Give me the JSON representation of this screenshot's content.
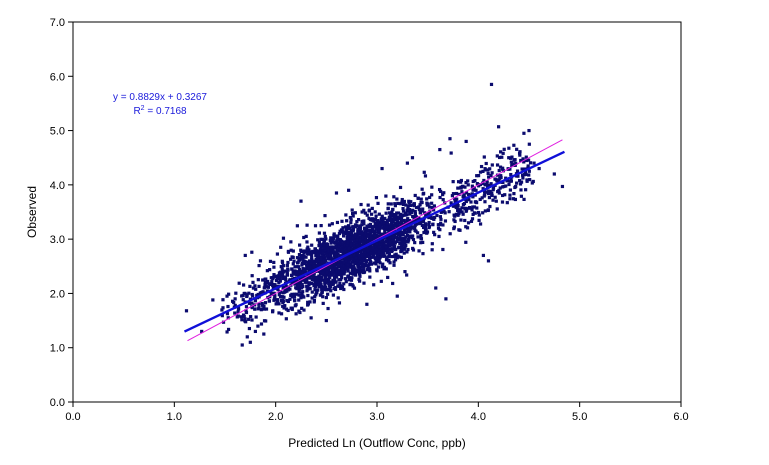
{
  "chart_data": {
    "type": "scatter",
    "title": "",
    "xlabel": "Predicted Ln (Outflow Conc, ppb)",
    "ylabel": "Observed",
    "xlim": [
      0,
      6
    ],
    "ylim": [
      0,
      7
    ],
    "x_ticks": [
      "0.0",
      "1.0",
      "2.0",
      "3.0",
      "4.0",
      "5.0",
      "6.0"
    ],
    "y_ticks": [
      "0.0",
      "1.0",
      "2.0",
      "3.0",
      "4.0",
      "5.0",
      "6.0",
      "7.0"
    ],
    "grid": false,
    "legend": "none",
    "annotation": {
      "equation": "y = 0.8829x + 0.3267",
      "r2_prefix": "R",
      "r2_sup": "2",
      "r2_value": " = 0.7168"
    },
    "series": [
      {
        "kind": "points",
        "color": "#0b0b6e",
        "approx_count": 2500,
        "x_range": [
          1.1,
          4.85
        ],
        "y_range": [
          1.05,
          5.85
        ],
        "points": [
          [
            1.12,
            1.68
          ],
          [
            1.27,
            1.3
          ],
          [
            1.38,
            1.88
          ],
          [
            1.52,
            1.95
          ],
          [
            1.6,
            1.9
          ],
          [
            1.67,
            1.05
          ],
          [
            1.7,
            2.7
          ],
          [
            1.72,
            1.2
          ],
          [
            1.75,
            1.1
          ],
          [
            1.8,
            1.3
          ],
          [
            1.85,
            2.6
          ],
          [
            2.05,
            2.85
          ],
          [
            2.15,
            2.95
          ],
          [
            2.25,
            3.7
          ],
          [
            2.35,
            1.55
          ],
          [
            2.5,
            1.5
          ],
          [
            2.6,
            3.85
          ],
          [
            2.72,
            3.9
          ],
          [
            2.9,
            1.8
          ],
          [
            3.05,
            4.3
          ],
          [
            3.2,
            1.95
          ],
          [
            3.3,
            4.4
          ],
          [
            3.35,
            4.5
          ],
          [
            3.58,
            2.1
          ],
          [
            3.62,
            4.65
          ],
          [
            3.68,
            1.9
          ],
          [
            3.72,
            4.85
          ],
          [
            3.88,
            4.8
          ],
          [
            4.05,
            2.7
          ],
          [
            4.1,
            2.6
          ],
          [
            4.13,
            5.85
          ],
          [
            4.2,
            5.07
          ],
          [
            4.3,
            4.5
          ],
          [
            4.45,
            4.95
          ],
          [
            4.5,
            5.0
          ],
          [
            4.55,
            4.4
          ],
          [
            4.6,
            4.3
          ],
          [
            4.75,
            4.2
          ],
          [
            4.83,
            3.97
          ]
        ]
      },
      {
        "kind": "line",
        "name": "y = 0.8829x + 0.3267",
        "color": "#1010d8",
        "slope": 0.8829,
        "intercept": 0.3267,
        "x_range": [
          1.1,
          4.85
        ]
      },
      {
        "kind": "line",
        "color": "#e020e0",
        "slope": 1.0,
        "intercept": 0.0,
        "x_range": [
          1.13,
          4.83
        ]
      }
    ]
  }
}
